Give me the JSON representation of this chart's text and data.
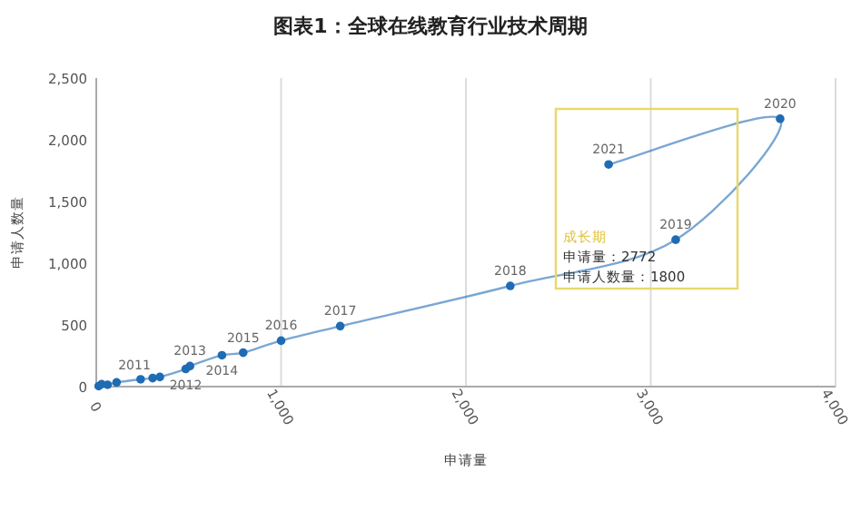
{
  "chart_data": {
    "type": "line",
    "title": "图表1：全球在线教育行业技术周期",
    "xlabel": "申请量",
    "ylabel": "申请人数量",
    "xlim": [
      0,
      4000
    ],
    "xticks": [
      0,
      {
        "value": 1000,
        "label": "1,000"
      },
      {
        "value": 2000,
        "label": "2,000"
      },
      {
        "value": 3000,
        "label": "3,000"
      },
      {
        "value": 4000,
        "label": "4,000"
      }
    ],
    "ylim": [
      0,
      2500
    ],
    "yticks": [
      0,
      {
        "value": 500,
        "label": "500"
      },
      {
        "value": 1000,
        "label": "1,000"
      },
      {
        "value": 1500,
        "label": "1,500"
      },
      {
        "value": 2000,
        "label": "2,000"
      },
      {
        "value": 2500,
        "label": "2,500"
      }
    ],
    "grid": "x",
    "marker": "circle",
    "line_style": "solid",
    "series": [
      {
        "color": "#1f6cb5",
        "x": [
          13,
          29,
          61,
          110,
          240,
          305,
          344,
          484,
          507,
          680,
          795,
          1000,
          1320,
          2240,
          3135,
          3700,
          2772
        ],
        "values": [
          4,
          19,
          15,
          34,
          59,
          69,
          78,
          143,
          166,
          254,
          275,
          372,
          490,
          816,
          1190,
          2170,
          1800
        ]
      }
    ],
    "annotations": [
      {
        "text": "2011",
        "x": 344,
        "y": 78
      },
      {
        "text": "2012",
        "x": 484,
        "y": 143
      },
      {
        "text": "2013",
        "x": 507,
        "y": 166
      },
      {
        "text": "2014",
        "x": 680,
        "y": 254
      },
      {
        "text": "2015",
        "x": 795,
        "y": 275
      },
      {
        "text": "2016",
        "x": 1000,
        "y": 372
      },
      {
        "text": "2017",
        "x": 1320,
        "y": 490
      },
      {
        "text": "2018",
        "x": 2240,
        "y": 816
      },
      {
        "text": "2019",
        "x": 3135,
        "y": 1190
      },
      {
        "text": "2020",
        "x": 3700,
        "y": 2170
      },
      {
        "text": "2021",
        "x": 2772,
        "y": 1800
      },
      "成长期",
      "申请量：2772",
      "申请人数量：1800"
    ]
  }
}
